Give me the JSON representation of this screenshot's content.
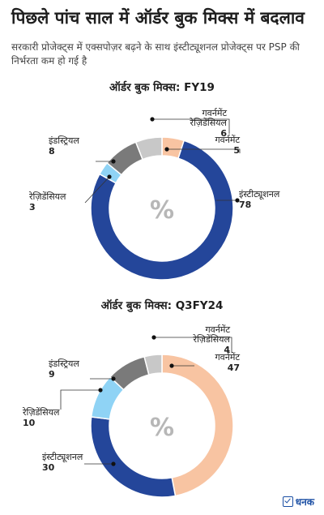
{
  "header": {
    "title": "पिछले पांच साल में ऑर्डर बुक मिक्स में बदलाव",
    "subtitle": "सरकारी प्रोजेक्ट्स में एक्सपोज़र बढ़ने के साथ इंस्टीट्यूशनल प्रोजेक्ट्स पर PSP की निर्भरता कम हो गई है"
  },
  "center_symbol": "%",
  "brand": {
    "name": "धनक"
  },
  "chart_data": [
    {
      "type": "pie",
      "title": "ऑर्डर बुक मिक्स: FY19",
      "categories": [
        "गवर्नमेंट",
        "इंस्टीट्यूशनल",
        "रेज़िडेंसियल",
        "इंडस्ट्रियल",
        "गवर्नमेंट रेज़िडेंसियल"
      ],
      "values": [
        5,
        78,
        3,
        8,
        6
      ],
      "colors": [
        "#f8c4a2",
        "#24469a",
        "#8fd3f5",
        "#7a7a7a",
        "#c8c8c8"
      ]
    },
    {
      "type": "pie",
      "title": "ऑर्डर बुक मिक्स: Q3FY24",
      "categories": [
        "गवर्नमेंट",
        "इंस्टीट्यूशनल",
        "रेज़िडेंसियल",
        "इंडस्ट्रियल",
        "गवर्नमेंट रेज़िडेंसियल"
      ],
      "values": [
        47,
        30,
        10,
        9,
        4
      ],
      "colors": [
        "#f8c4a2",
        "#24469a",
        "#8fd3f5",
        "#7a7a7a",
        "#c8c8c8"
      ]
    }
  ]
}
